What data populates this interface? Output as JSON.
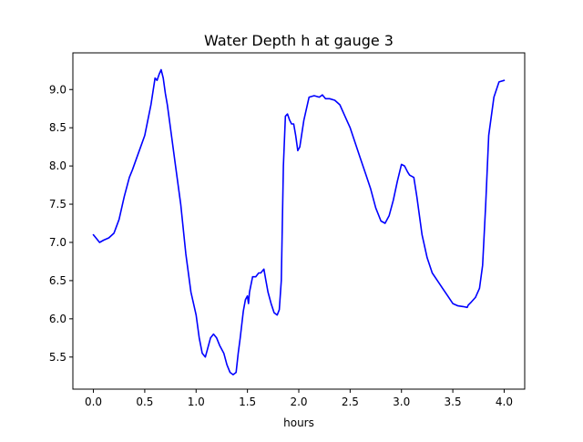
{
  "chart_data": {
    "type": "line",
    "title": "Water Depth h at gauge 3",
    "xlabel": "hours",
    "ylabel": "",
    "xlim": [
      -0.2,
      4.2
    ],
    "ylim": [
      5.08,
      9.48
    ],
    "xticks": [
      0.0,
      0.5,
      1.0,
      1.5,
      2.0,
      2.5,
      3.0,
      3.5,
      4.0
    ],
    "xtick_labels": [
      "0.0",
      "0.5",
      "1.0",
      "1.5",
      "2.0",
      "2.5",
      "3.0",
      "3.5",
      "4.0"
    ],
    "yticks": [
      5.5,
      6.0,
      6.5,
      7.0,
      7.5,
      8.0,
      8.5,
      9.0
    ],
    "ytick_labels": [
      "5.5",
      "6.0",
      "6.5",
      "7.0",
      "7.5",
      "8.0",
      "8.5",
      "9.0"
    ],
    "grid": false,
    "legend": false,
    "series": [
      {
        "color": "#0000ff",
        "x": [
          0.0,
          0.03,
          0.06,
          0.1,
          0.15,
          0.2,
          0.25,
          0.3,
          0.35,
          0.38,
          0.42,
          0.46,
          0.5,
          0.53,
          0.56,
          0.6,
          0.62,
          0.64,
          0.66,
          0.68,
          0.7,
          0.72,
          0.75,
          0.8,
          0.85,
          0.9,
          0.95,
          1.0,
          1.03,
          1.06,
          1.09,
          1.11,
          1.14,
          1.17,
          1.2,
          1.23,
          1.27,
          1.3,
          1.33,
          1.36,
          1.39,
          1.41,
          1.43,
          1.46,
          1.48,
          1.5,
          1.51,
          1.52,
          1.55,
          1.58,
          1.61,
          1.63,
          1.66,
          1.68,
          1.7,
          1.73,
          1.76,
          1.79,
          1.81,
          1.83,
          1.85,
          1.87,
          1.89,
          1.91,
          1.93,
          1.95,
          1.97,
          1.99,
          2.01,
          2.05,
          2.1,
          2.15,
          2.2,
          2.23,
          2.26,
          2.3,
          2.35,
          2.4,
          2.45,
          2.5,
          2.55,
          2.6,
          2.65,
          2.7,
          2.75,
          2.8,
          2.84,
          2.88,
          2.92,
          2.96,
          3.0,
          3.03,
          3.06,
          3.08,
          3.12,
          3.15,
          3.2,
          3.25,
          3.3,
          3.35,
          3.4,
          3.45,
          3.5,
          3.55,
          3.6,
          3.64,
          3.65,
          3.68,
          3.72,
          3.76,
          3.79,
          3.82,
          3.85,
          3.9,
          3.95,
          4.0
        ],
        "y": [
          7.1,
          7.05,
          7.0,
          7.03,
          7.06,
          7.12,
          7.3,
          7.6,
          7.85,
          7.95,
          8.1,
          8.25,
          8.4,
          8.6,
          8.8,
          9.15,
          9.12,
          9.2,
          9.26,
          9.15,
          8.95,
          8.8,
          8.5,
          8.0,
          7.5,
          6.85,
          6.35,
          6.05,
          5.75,
          5.55,
          5.5,
          5.6,
          5.75,
          5.8,
          5.75,
          5.65,
          5.55,
          5.4,
          5.3,
          5.27,
          5.3,
          5.55,
          5.75,
          6.1,
          6.25,
          6.3,
          6.2,
          6.35,
          6.55,
          6.55,
          6.6,
          6.6,
          6.65,
          6.5,
          6.35,
          6.2,
          6.08,
          6.05,
          6.12,
          6.5,
          8.0,
          8.65,
          8.68,
          8.6,
          8.55,
          8.55,
          8.4,
          8.2,
          8.25,
          8.6,
          8.9,
          8.92,
          8.9,
          8.93,
          8.88,
          8.88,
          8.86,
          8.8,
          8.65,
          8.5,
          8.3,
          8.1,
          7.9,
          7.7,
          7.45,
          7.28,
          7.25,
          7.35,
          7.55,
          7.8,
          8.02,
          8.0,
          7.92,
          7.88,
          7.85,
          7.6,
          7.1,
          6.8,
          6.6,
          6.5,
          6.4,
          6.3,
          6.2,
          6.17,
          6.16,
          6.15,
          6.18,
          6.22,
          6.28,
          6.4,
          6.7,
          7.5,
          8.4,
          8.9,
          9.1,
          9.12
        ]
      }
    ]
  }
}
